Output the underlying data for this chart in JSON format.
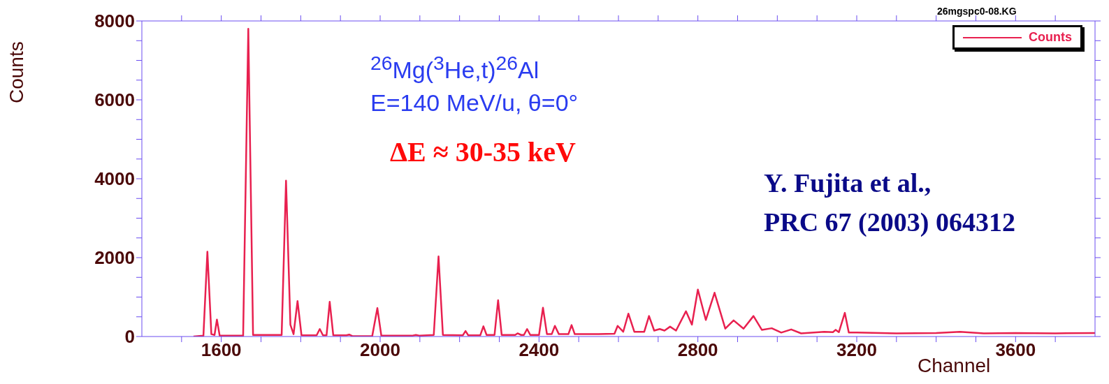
{
  "chart_data": {
    "type": "line",
    "xlabel": "Channel",
    "ylabel": "Counts",
    "annotations": [
      "$^{26}$Mg($^{3}$He,t)$^{26}$Al",
      "E=140 MeV/u, θ=0°",
      "ΔE ≈ 30-35 keV",
      "Y. Fujita et al.,\nPRC 67 (2003) 064312",
      "26mgspc0-08.KG"
    ],
    "xlim": [
      1400,
      3800
    ],
    "ylim": [
      0,
      8000
    ],
    "xticks": [
      {
        "value": 1500,
        "label": null
      },
      1600,
      {
        "value": 1700,
        "label": null
      },
      {
        "value": 1800,
        "label": null
      },
      {
        "value": 1900,
        "label": null
      },
      2000,
      {
        "value": 2100,
        "label": null
      },
      {
        "value": 2200,
        "label": null
      },
      {
        "value": 2300,
        "label": null
      },
      2400,
      {
        "value": 2500,
        "label": null
      },
      {
        "value": 2600,
        "label": null
      },
      {
        "value": 2700,
        "label": null
      },
      2800,
      {
        "value": 2900,
        "label": null
      },
      {
        "value": 3000,
        "label": null
      },
      {
        "value": 3100,
        "label": null
      },
      3200,
      {
        "value": 3300,
        "label": null
      },
      {
        "value": 3400,
        "label": null
      },
      {
        "value": 3500,
        "label": null
      },
      3600,
      {
        "value": 3700,
        "label": null
      }
    ],
    "yticks": [
      0,
      {
        "value": 500,
        "label": null
      },
      {
        "value": 1000,
        "label": null
      },
      {
        "value": 1500,
        "label": null
      },
      2000,
      {
        "value": 2500,
        "label": null
      },
      {
        "value": 3000,
        "label": null
      },
      {
        "value": 3500,
        "label": null
      },
      4000,
      {
        "value": 4500,
        "label": null
      },
      {
        "value": 5000,
        "label": null
      },
      {
        "value": 5500,
        "label": null
      },
      6000,
      {
        "value": 6500,
        "label": null
      },
      {
        "value": 7000,
        "label": null
      },
      {
        "value": 7500,
        "label": null
      },
      8000
    ],
    "grid": false,
    "legend": "top right",
    "marker": "none",
    "line_style": "solid",
    "series": [
      {
        "name": "Counts",
        "color": "#e8204f",
        "x": [
          1530,
          1555,
          1565,
          1575,
          1583,
          1589,
          1596,
          1655,
          1668,
          1680,
          1752,
          1763,
          1774,
          1782,
          1792,
          1802,
          1840,
          1848,
          1856,
          1865,
          1873,
          1882,
          1915,
          1922,
          1930,
          1980,
          1993,
          2003,
          2080,
          2090,
          2100,
          2135,
          2147,
          2158,
          2208,
          2215,
          2222,
          2252,
          2260,
          2268,
          2288,
          2297,
          2306,
          2340,
          2346,
          2355,
          2362,
          2370,
          2378,
          2400,
          2410,
          2420,
          2432,
          2440,
          2450,
          2474,
          2482,
          2490,
          2550,
          2590,
          2598,
          2612,
          2625,
          2640,
          2665,
          2677,
          2690,
          2704,
          2716,
          2730,
          2745,
          2770,
          2785,
          2800,
          2820,
          2842,
          2869,
          2890,
          2915,
          2940,
          2961,
          2986,
          3010,
          3035,
          3060,
          3118,
          3140,
          3147,
          3155,
          3170,
          3180,
          3200,
          3300,
          3400,
          3460,
          3520,
          3600,
          3700,
          3800
        ],
        "values": [
          0,
          20,
          2150,
          60,
          40,
          430,
          20,
          20,
          7800,
          40,
          40,
          3950,
          300,
          60,
          900,
          30,
          30,
          190,
          30,
          30,
          880,
          30,
          30,
          50,
          10,
          10,
          720,
          20,
          20,
          40,
          20,
          40,
          2030,
          40,
          30,
          140,
          30,
          30,
          260,
          40,
          40,
          920,
          40,
          40,
          80,
          40,
          40,
          190,
          40,
          40,
          730,
          60,
          60,
          270,
          60,
          60,
          290,
          60,
          60,
          70,
          270,
          120,
          580,
          120,
          120,
          520,
          150,
          190,
          150,
          250,
          150,
          640,
          300,
          1190,
          420,
          1110,
          200,
          410,
          200,
          520,
          170,
          210,
          100,
          180,
          80,
          120,
          110,
          170,
          110,
          600,
          100,
          100,
          80,
          90,
          120,
          80,
          90,
          80,
          90
        ]
      }
    ]
  }
}
